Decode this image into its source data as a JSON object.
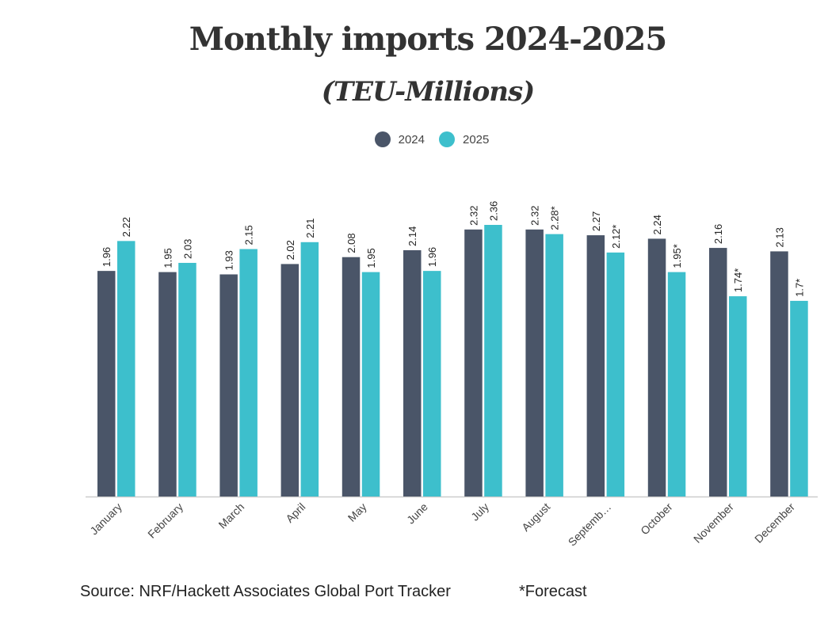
{
  "chart_data": {
    "type": "bar",
    "title": "Monthly imports 2024-2025",
    "subtitle": "(TEU-Millions)",
    "categories": [
      "January",
      "February",
      "March",
      "April",
      "May",
      "June",
      "July",
      "August",
      "Septemb…",
      "October",
      "November",
      "December"
    ],
    "series": [
      {
        "name": "2024",
        "color": "#4a5568",
        "values": [
          1.96,
          1.95,
          1.93,
          2.02,
          2.08,
          2.14,
          2.32,
          2.32,
          2.27,
          2.24,
          2.16,
          2.13
        ],
        "labels": [
          "1.96",
          "1.95",
          "1.93",
          "2.02",
          "2.08",
          "2.14",
          "2.32",
          "2.32",
          "2.27",
          "2.24",
          "2.16",
          "2.13"
        ]
      },
      {
        "name": "2025",
        "color": "#3dbfcc",
        "values": [
          2.22,
          2.03,
          2.15,
          2.21,
          1.95,
          1.96,
          2.36,
          2.28,
          2.12,
          1.95,
          1.74,
          1.7
        ],
        "labels": [
          "2.22",
          "2.03",
          "2.15",
          "2.21",
          "1.95",
          "1.96",
          "2.36",
          "2.28*",
          "2.12*",
          "1.95*",
          "1.74*",
          "1.7*"
        ]
      }
    ],
    "ylim": [
      0,
      2.36
    ],
    "grid": false,
    "legend_position": "top-center",
    "xlabel": "",
    "ylabel": ""
  },
  "footer": {
    "source": "Source: NRF/Hackett Associates Global Port Tracker",
    "forecast_note": "*Forecast"
  }
}
